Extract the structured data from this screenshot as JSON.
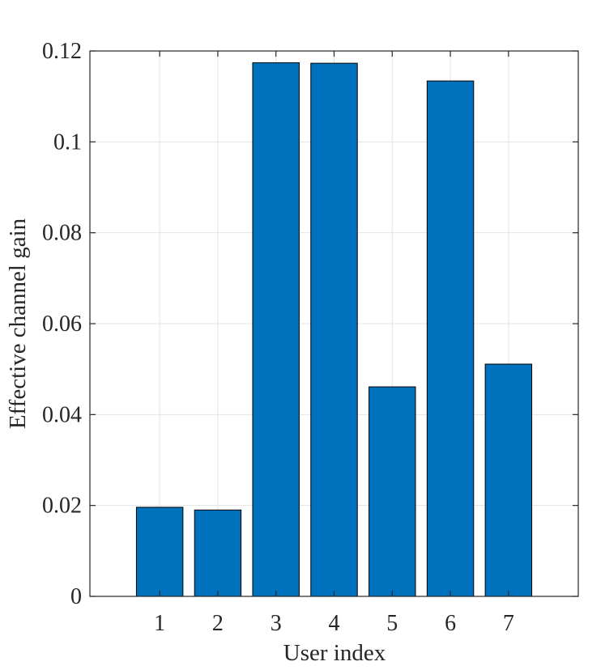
{
  "chart_data": {
    "type": "bar",
    "title": "",
    "xlabel": "User index",
    "ylabel": "Effective channel gain",
    "categories": [
      "1",
      "2",
      "3",
      "4",
      "5",
      "6",
      "7"
    ],
    "values": [
      0.0196,
      0.019,
      0.1174,
      0.1173,
      0.0461,
      0.1134,
      0.0511
    ],
    "ylim": [
      0,
      0.12
    ],
    "xlim": [
      -0.2,
      8.2
    ],
    "yticks": [
      0,
      0.02,
      0.04,
      0.06,
      0.08,
      0.1,
      0.12
    ],
    "ytick_labels": [
      "0",
      "0.02",
      "0.04",
      "0.06",
      "0.08",
      "0.1",
      "0.12"
    ],
    "bar_width": 0.8,
    "bar_color": "#0072BD",
    "edge_color": "#000000",
    "grid": true,
    "box": true
  }
}
